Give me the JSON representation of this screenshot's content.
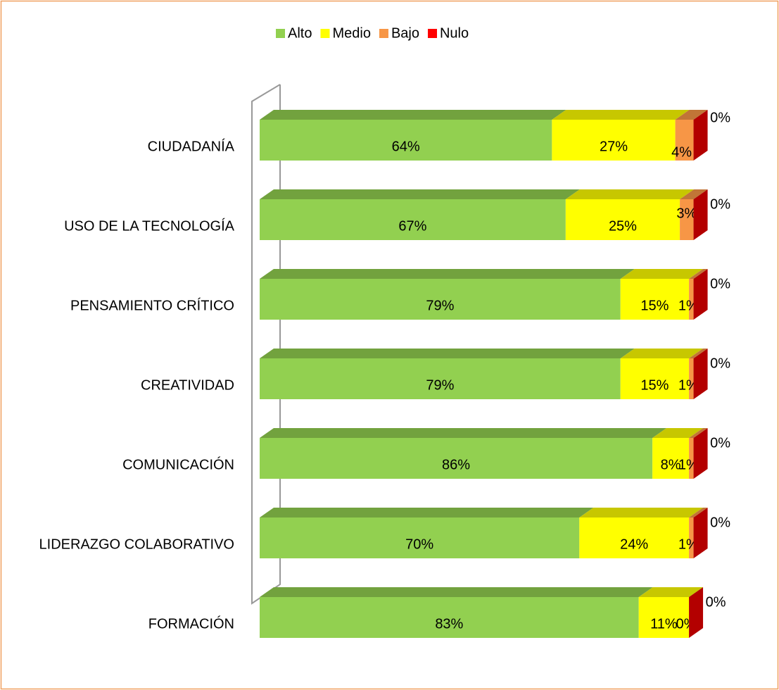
{
  "chart_data": {
    "type": "bar",
    "orientation": "horizontal",
    "stacked": true,
    "categories": [
      "CIUDADANÍA",
      "USO DE LA TECNOLOGÍA",
      "PENSAMIENTO CRÍTICO",
      "CREATIVIDAD",
      "COMUNICACIÓN",
      "LIDERAZGO COLABORATIVO",
      "FORMACIÓN"
    ],
    "series": [
      {
        "name": "Alto",
        "color": "#92d050",
        "values": [
          64,
          67,
          79,
          79,
          86,
          70,
          83
        ],
        "value_labels": [
          "64%",
          "67%",
          "79%",
          "79%",
          "86%",
          "70%",
          "83%"
        ]
      },
      {
        "name": "Medio",
        "color": "#ffff00",
        "values": [
          27,
          25,
          15,
          15,
          8,
          24,
          11
        ],
        "value_labels": [
          "27%",
          "25%",
          "15%",
          "15%",
          "8%",
          "24%",
          "11%"
        ]
      },
      {
        "name": "Bajo",
        "color": "#f79646",
        "values": [
          4,
          3,
          1,
          1,
          1,
          1,
          0
        ],
        "value_labels": [
          "4%",
          "3%",
          "1%",
          "1%",
          "1%",
          "1%",
          "0%"
        ]
      },
      {
        "name": "Nulo",
        "color": "#ff0000",
        "values": [
          0,
          0,
          0,
          0,
          0,
          0,
          0
        ],
        "value_labels": [
          "0%",
          "0%",
          "0%",
          "0%",
          "0%",
          "0%",
          "0%"
        ]
      }
    ],
    "xlim": [
      0,
      100
    ],
    "legend": "top"
  }
}
